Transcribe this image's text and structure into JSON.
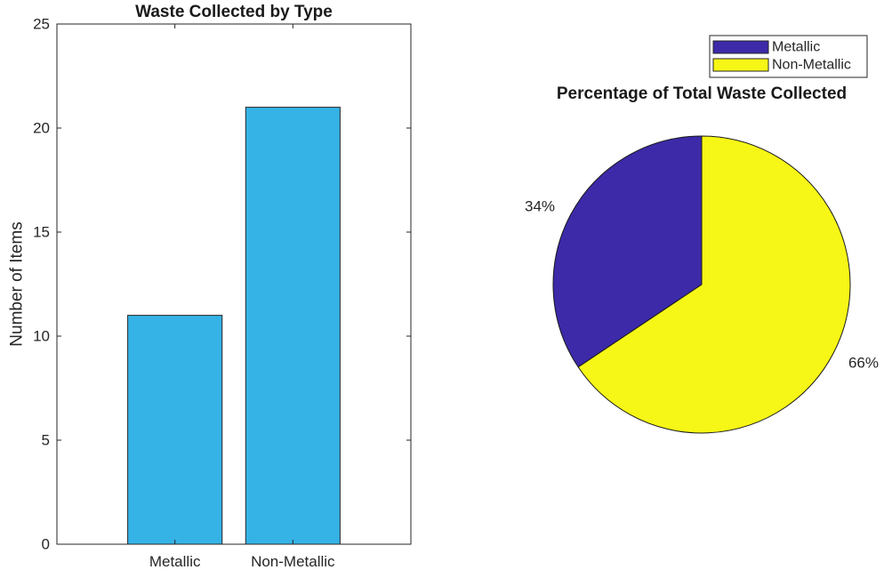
{
  "chart_data": [
    {
      "type": "bar",
      "title": "Waste Collected by Type",
      "ylabel": "Number of Items",
      "xlabel": "",
      "categories": [
        "Metallic",
        "Non-Metallic"
      ],
      "values": [
        11,
        21
      ],
      "ylim": [
        0,
        25
      ],
      "yticks": [
        0,
        5,
        10,
        15,
        20,
        25
      ],
      "grid": false,
      "bar_color": "#35b3e6",
      "legend": "none"
    },
    {
      "type": "pie",
      "title": "Percentage of Total Waste Collected",
      "labels": [
        "Metallic",
        "Non-Metallic"
      ],
      "values": [
        11,
        21
      ],
      "percent_labels": [
        "34%",
        "66%"
      ],
      "colors": [
        "#3c2aa8",
        "#f6f716"
      ],
      "legend": "top-right"
    }
  ]
}
